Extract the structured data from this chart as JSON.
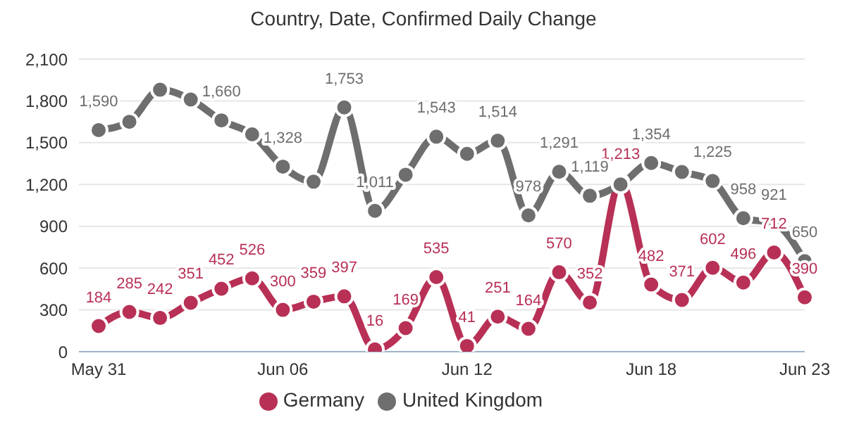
{
  "chart_data": {
    "type": "line",
    "title": "Country, Date, Confirmed Daily Change",
    "categories": [
      "May 31",
      null,
      null,
      null,
      null,
      null,
      "Jun 06",
      null,
      null,
      null,
      null,
      null,
      "Jun 12",
      null,
      null,
      null,
      null,
      null,
      "Jun 18",
      null,
      null,
      null,
      null,
      "Jun 23"
    ],
    "series": [
      {
        "name": "Germany",
        "color": "#b83055",
        "values": [
          184,
          285,
          242,
          351,
          452,
          526,
          300,
          359,
          397,
          16,
          169,
          535,
          41,
          251,
          164,
          570,
          352,
          1213,
          482,
          371,
          602,
          496,
          712,
          390
        ],
        "value_labels": [
          "184",
          "285",
          "242",
          "351",
          "452",
          "526",
          "300",
          "359",
          "397",
          "16",
          "169",
          "535",
          "41",
          "251",
          "164",
          "570",
          "352",
          "1,213",
          "482",
          "371",
          "602",
          "496",
          "712",
          "390"
        ]
      },
      {
        "name": "United Kingdom",
        "color": "#6e6e6e",
        "values": [
          1590,
          1650,
          1880,
          1810,
          1660,
          1560,
          1328,
          1220,
          1753,
          1011,
          1270,
          1543,
          1420,
          1514,
          978,
          1291,
          1119,
          1200,
          1354,
          1290,
          1225,
          958,
          921,
          650
        ],
        "value_labels": [
          "1,590",
          null,
          null,
          null,
          "1,660",
          null,
          "1,328",
          null,
          "1,753",
          "1,011",
          null,
          "1,543",
          null,
          "1,514",
          "978",
          "1,291",
          "1,119",
          null,
          "1,354",
          null,
          "1,225",
          "958",
          "921",
          "650"
        ]
      }
    ],
    "ylim": [
      0,
      2100
    ],
    "yticks": [
      0,
      300,
      600,
      900,
      {
        "value": 1200,
        "label": "1,200"
      },
      {
        "value": 1500,
        "label": "1,500"
      },
      {
        "value": 1800,
        "label": "1,800"
      },
      {
        "value": 2100,
        "label": "2,100"
      }
    ],
    "grid": "y",
    "legend": "bottom",
    "marker": "circle",
    "line_style": "solid"
  }
}
